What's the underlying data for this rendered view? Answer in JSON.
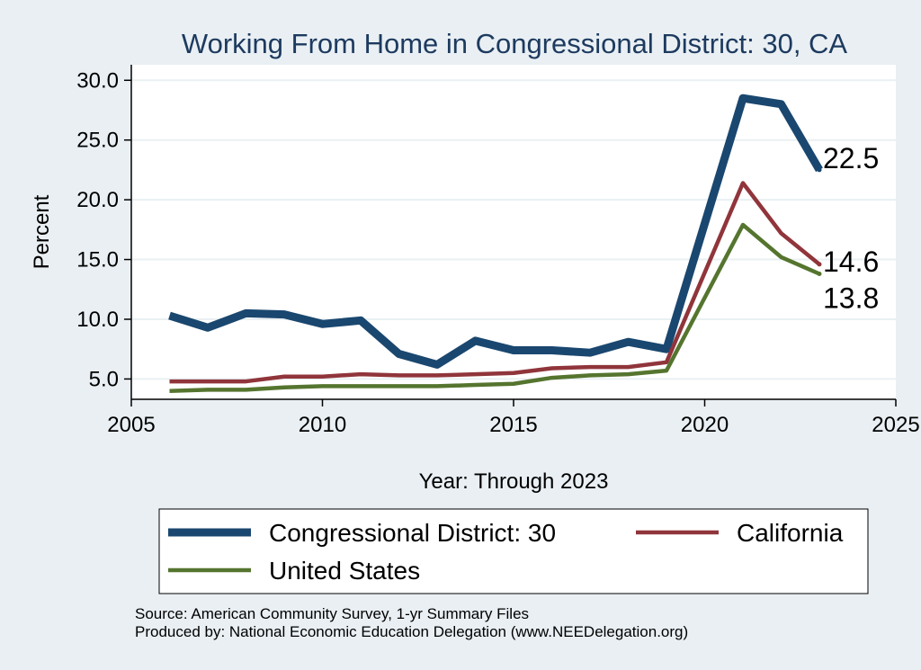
{
  "chart_data": {
    "type": "line",
    "title": "Working From Home in Congressional District: 30, CA",
    "xlabel": "Year: Through 2023",
    "ylabel": "Percent",
    "xlim": [
      2005,
      2025
    ],
    "ylim": [
      3.3,
      31.3
    ],
    "x_ticks": [
      "2005",
      "2010",
      "2015",
      "2020",
      "2025"
    ],
    "y_ticks": [
      "5.0",
      "10.0",
      "15.0",
      "20.0",
      "25.0",
      "30.0"
    ],
    "grid": true,
    "legend_position": "bottom",
    "x": [
      2006,
      2007,
      2008,
      2009,
      2010,
      2011,
      2012,
      2013,
      2014,
      2015,
      2016,
      2017,
      2018,
      2019,
      2021,
      2022,
      2023
    ],
    "series": [
      {
        "name": "Congressional District: 30",
        "color": "#1a476f",
        "values": [
          10.3,
          9.3,
          10.5,
          10.4,
          9.6,
          9.9,
          7.1,
          6.2,
          8.2,
          7.4,
          7.4,
          7.2,
          8.1,
          7.5,
          28.5,
          28.0,
          22.5
        ],
        "end_label": "22.5"
      },
      {
        "name": "California",
        "color": "#90353b",
        "values": [
          4.8,
          4.8,
          4.8,
          5.2,
          5.2,
          5.4,
          5.3,
          5.3,
          5.4,
          5.5,
          5.9,
          6.0,
          6.0,
          6.4,
          21.4,
          17.2,
          14.6
        ],
        "end_label": "14.6"
      },
      {
        "name": "United States",
        "color": "#55752f",
        "values": [
          4.0,
          4.1,
          4.1,
          4.3,
          4.4,
          4.4,
          4.4,
          4.4,
          4.5,
          4.6,
          5.1,
          5.3,
          5.4,
          5.7,
          17.9,
          15.2,
          13.8
        ],
        "end_label": "13.8"
      }
    ],
    "source_lines": [
      "Source: American Community Survey, 1-yr Summary Files",
      "Produced by: National Economic Education Delegation (www.NEEDelegation.org)"
    ]
  }
}
